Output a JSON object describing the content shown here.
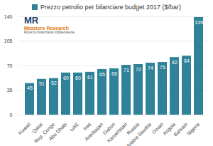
{
  "chart_data": {
    "type": "bar",
    "categories": [
      "Kuwait",
      "Qatar",
      "Rep. Congo",
      "Abu Dhabi",
      "UAE",
      "Iraq",
      "Azerbaijan",
      "Gabon",
      "Kazakhstan",
      "Russia",
      "Arabia Saudita",
      "Oman",
      "Angola",
      "Bahrain",
      "Nigeria"
    ],
    "series": [
      {
        "name": "Prezzo petrolio per bilanciare budget 2017 ($/bar)",
        "color": "#2f8299",
        "values": [
          45,
          51,
          52,
          60,
          60,
          61,
          65,
          66,
          71,
          72,
          74,
          75,
          82,
          84,
          139
        ]
      }
    ],
    "ylim": [
      0,
      140
    ],
    "yticks": [
      0,
      35,
      70,
      105,
      140
    ],
    "grid": true,
    "legend": "top",
    "data_labels": true,
    "annotations": [
      "MR",
      "Mazziero Research",
      "Ricerca finanziaria indipendente"
    ]
  }
}
